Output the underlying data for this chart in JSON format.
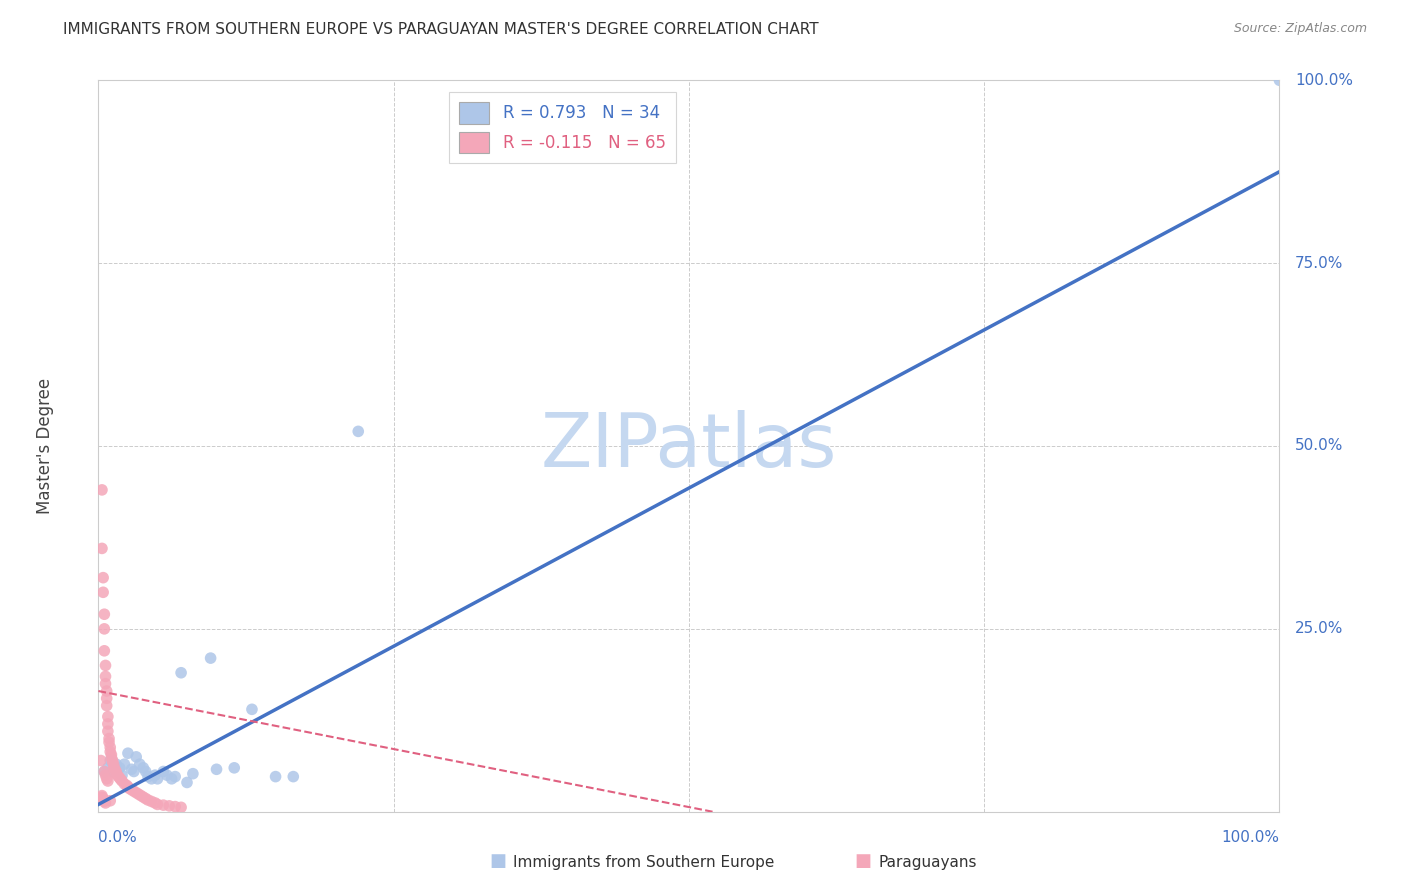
{
  "title": "IMMIGRANTS FROM SOUTHERN EUROPE VS PARAGUAYAN MASTER'S DEGREE CORRELATION CHART",
  "source": "Source: ZipAtlas.com",
  "ylabel": "Master's Degree",
  "watermark": "ZIPatlas",
  "legend": [
    {
      "label": "R = 0.793   N = 34",
      "color": "#aec6e8"
    },
    {
      "label": "R = -0.115   N = 65",
      "color": "#f4a7b9"
    }
  ],
  "blue_scatter_x": [
    0.005,
    0.008,
    0.01,
    0.012,
    0.015,
    0.018,
    0.02,
    0.022,
    0.025,
    0.028,
    0.03,
    0.032,
    0.035,
    0.038,
    0.04,
    0.042,
    0.045,
    0.048,
    0.05,
    0.055,
    0.058,
    0.062,
    0.065,
    0.07,
    0.075,
    0.08,
    0.095,
    0.1,
    0.115,
    0.13,
    0.15,
    0.165,
    0.22,
    1.0
  ],
  "blue_scatter_y": [
    0.055,
    0.06,
    0.07,
    0.055,
    0.065,
    0.06,
    0.05,
    0.065,
    0.08,
    0.058,
    0.055,
    0.075,
    0.065,
    0.06,
    0.055,
    0.048,
    0.045,
    0.05,
    0.045,
    0.055,
    0.05,
    0.045,
    0.048,
    0.19,
    0.04,
    0.052,
    0.21,
    0.058,
    0.06,
    0.14,
    0.048,
    0.048,
    0.52,
    1.0
  ],
  "pink_scatter_x": [
    0.002,
    0.003,
    0.003,
    0.004,
    0.004,
    0.005,
    0.005,
    0.005,
    0.006,
    0.006,
    0.006,
    0.007,
    0.007,
    0.007,
    0.008,
    0.008,
    0.008,
    0.009,
    0.009,
    0.01,
    0.01,
    0.011,
    0.011,
    0.012,
    0.012,
    0.013,
    0.013,
    0.014,
    0.015,
    0.015,
    0.016,
    0.017,
    0.018,
    0.019,
    0.02,
    0.022,
    0.024,
    0.025,
    0.026,
    0.028,
    0.03,
    0.032,
    0.034,
    0.036,
    0.038,
    0.04,
    0.042,
    0.045,
    0.048,
    0.05,
    0.055,
    0.06,
    0.065,
    0.07,
    0.005,
    0.006,
    0.007,
    0.008,
    0.003,
    0.003,
    0.004,
    0.004,
    0.005,
    0.006,
    0.01
  ],
  "pink_scatter_y": [
    0.07,
    0.44,
    0.36,
    0.32,
    0.3,
    0.27,
    0.25,
    0.22,
    0.2,
    0.185,
    0.175,
    0.165,
    0.155,
    0.145,
    0.13,
    0.12,
    0.11,
    0.1,
    0.095,
    0.088,
    0.082,
    0.078,
    0.074,
    0.07,
    0.068,
    0.064,
    0.06,
    0.058,
    0.055,
    0.052,
    0.05,
    0.048,
    0.046,
    0.044,
    0.042,
    0.038,
    0.036,
    0.034,
    0.032,
    0.03,
    0.028,
    0.026,
    0.024,
    0.022,
    0.02,
    0.018,
    0.016,
    0.014,
    0.012,
    0.01,
    0.009,
    0.008,
    0.007,
    0.006,
    0.055,
    0.05,
    0.045,
    0.042,
    0.022,
    0.02,
    0.018,
    0.016,
    0.014,
    0.012,
    0.015
  ],
  "blue_line_x": [
    0.0,
    1.0
  ],
  "blue_line_y": [
    0.01,
    0.875
  ],
  "pink_line_x": [
    0.0,
    0.52
  ],
  "pink_line_y": [
    0.165,
    0.0
  ],
  "xlim": [
    0.0,
    1.0
  ],
  "ylim": [
    0.0,
    1.0
  ],
  "xticks": [
    0.0,
    0.25,
    0.5,
    0.75,
    1.0
  ],
  "yticks_right": [
    0.0,
    0.25,
    0.5,
    0.75,
    1.0
  ],
  "ytick_labels_right": [
    "",
    "25.0%",
    "50.0%",
    "75.0%",
    "100.0%"
  ],
  "background_color": "#ffffff",
  "plot_bg_color": "#ffffff",
  "grid_color": "#cccccc",
  "blue_dot_color": "#aec6e8",
  "pink_dot_color": "#f4a7b9",
  "blue_line_color": "#4472c4",
  "pink_line_color": "#e06080",
  "title_color": "#333333",
  "source_color": "#888888",
  "watermark_color": "#c5d8f0",
  "axis_label_color": "#4472c4",
  "dot_size": 70
}
